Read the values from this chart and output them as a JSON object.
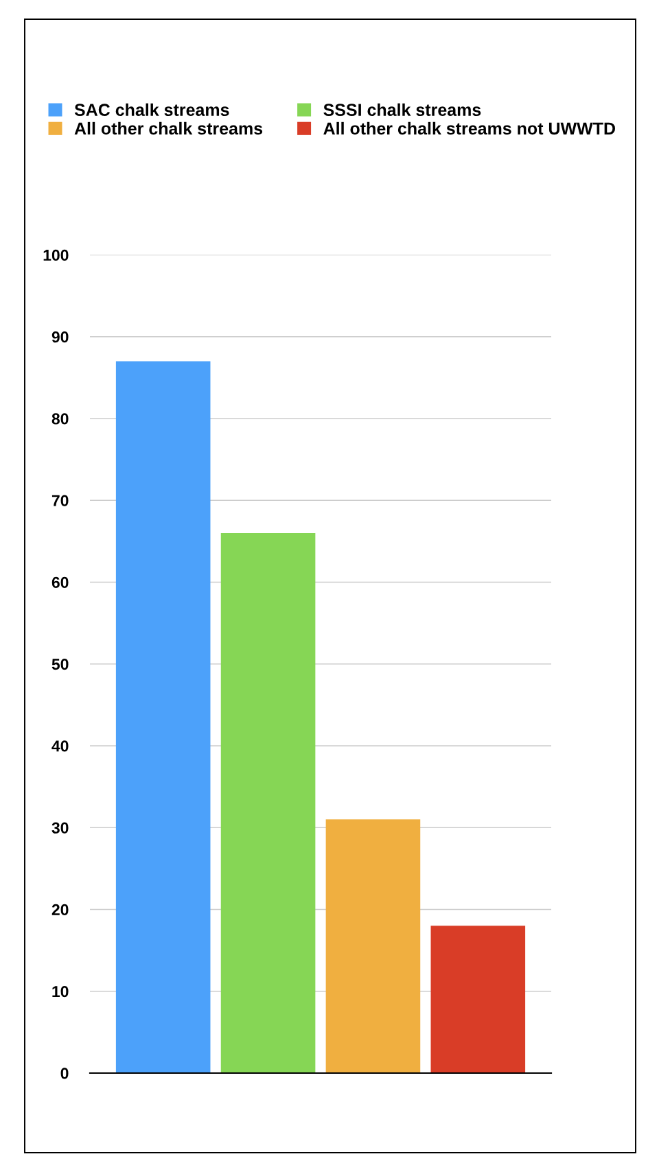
{
  "chart_data": {
    "type": "bar",
    "categories": [
      null
    ],
    "series": [
      {
        "name": "SAC chalk streams",
        "color": "#4ca1fa",
        "values": [
          87
        ]
      },
      {
        "name": "SSSI chalk streams",
        "color": "#86d655",
        "values": [
          66
        ]
      },
      {
        "name": "All other chalk streams",
        "color": "#f0af40",
        "values": [
          31
        ]
      },
      {
        "name": "All other chalk streams not UWWTD",
        "color": "#d93d27",
        "values": [
          18
        ]
      }
    ],
    "ylim": [
      0,
      100
    ],
    "yticks": [
      0,
      10,
      20,
      30,
      40,
      50,
      60,
      70,
      80,
      90,
      100
    ],
    "grid": "y",
    "legend": "top"
  }
}
